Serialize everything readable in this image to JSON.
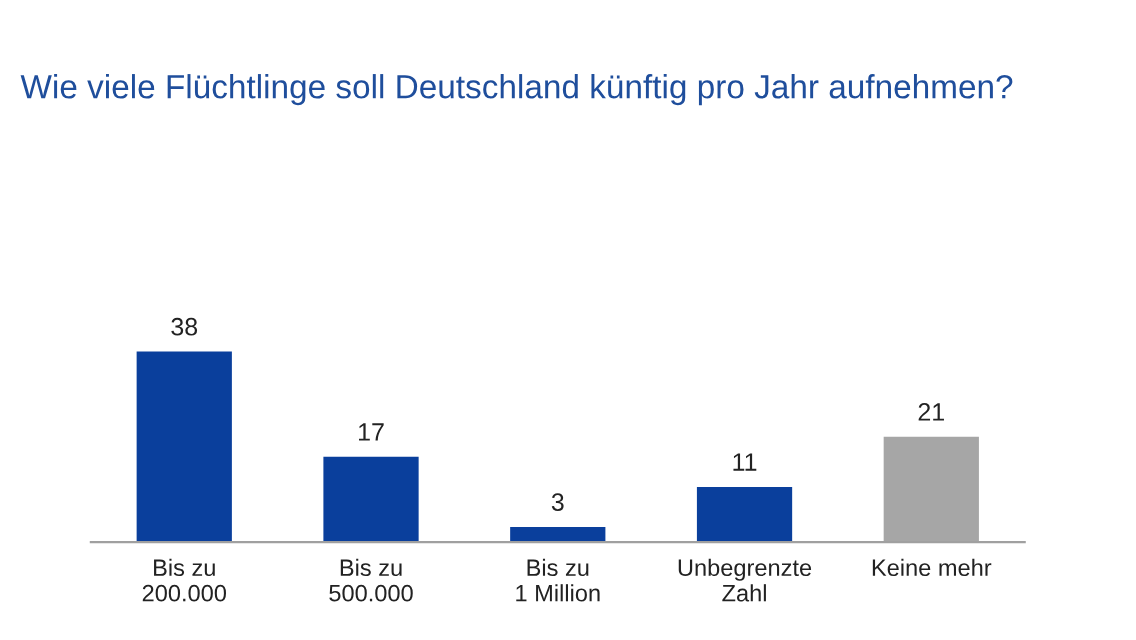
{
  "chart_data": {
    "type": "bar",
    "title": "Wie viele Flüchtlinge soll Deutschland künftig pro Jahr aufnehmen?",
    "categories": [
      "Bis zu\n200.000",
      "Bis zu\n500.000",
      "Bis zu\n1 Million",
      "Unbegrenzte\nZahl",
      "Keine mehr"
    ],
    "values": [
      38,
      17,
      3,
      11,
      21
    ],
    "colors": [
      "#0a3f9c",
      "#0a3f9c",
      "#0a3f9c",
      "#0a3f9c",
      "#a6a6a6"
    ],
    "data_labels": true,
    "grid": false,
    "legend": false
  }
}
